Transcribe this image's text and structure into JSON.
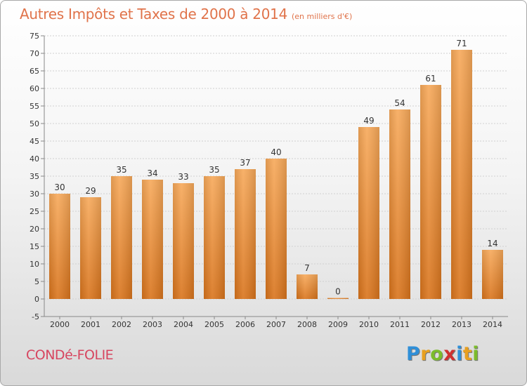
{
  "title": "Autres Impôts et Taxes de 2000 à 2014",
  "unit_label": "(en milliers d'€)",
  "commune": "CONDé-FOLIE",
  "logo": {
    "letters": [
      "P",
      "r",
      "o",
      "x",
      "i",
      "t",
      "i"
    ],
    "colors": [
      "#2f8fd8",
      "#e8a020",
      "#7cbc2c",
      "#d03030",
      "#2f8fd8",
      "#e8a020",
      "#7cbc2c"
    ]
  },
  "chart_data": {
    "type": "bar",
    "title": "Autres Impôts et Taxes de 2000 à 2014",
    "subtitle": "(en milliers d'€)",
    "categories": [
      "2000",
      "2001",
      "2002",
      "2003",
      "2004",
      "2005",
      "2006",
      "2007",
      "2008",
      "2009",
      "2010",
      "2011",
      "2012",
      "2013",
      "2014"
    ],
    "values": [
      30,
      29,
      35,
      34,
      33,
      35,
      37,
      40,
      7,
      0,
      49,
      54,
      61,
      71,
      14
    ],
    "ylim": [
      -5,
      75
    ],
    "ytick_step": 5,
    "grid": true,
    "bar_color": "#f0923a",
    "legend": "none"
  }
}
